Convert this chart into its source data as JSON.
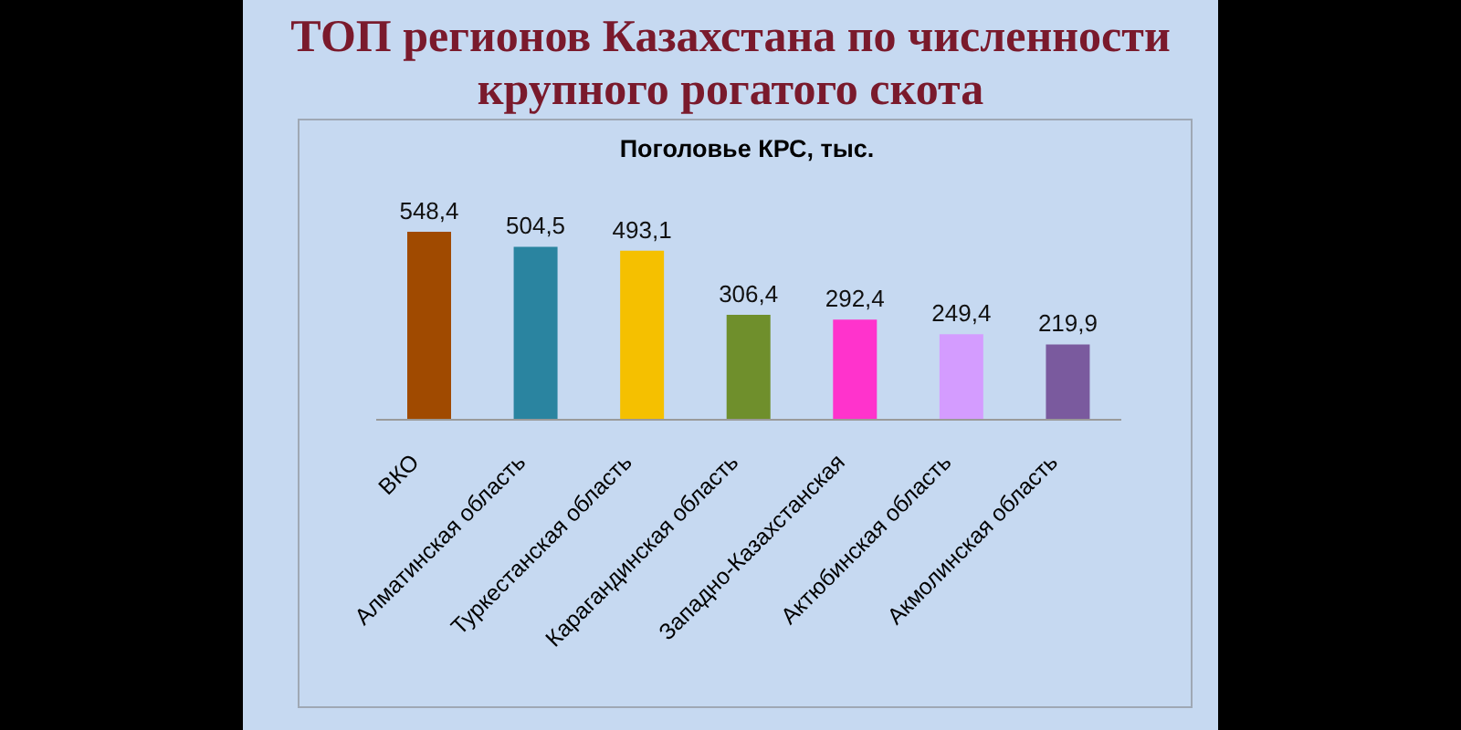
{
  "chart_data": {
    "type": "bar",
    "title": "ТОП регионов Казахстана по численности крупного рогатого скота",
    "subtitle": "Поголовье КРС, тыс.",
    "categories": [
      "ВКО",
      "Алматинская область",
      "Туркестанская область",
      "Карагандинская область",
      "Западно-Казахстанская",
      "Актюбинская область",
      "Акмолинская область"
    ],
    "values": [
      548.4,
      504.5,
      493.1,
      306.4,
      292.4,
      249.4,
      219.9
    ],
    "value_labels": [
      "548,4",
      "504,5",
      "493,1",
      "306,4",
      "292,4",
      "249,4",
      "219,9"
    ],
    "colors": [
      "#a04a00",
      "#2a84a0",
      "#f5c000",
      "#6f8f2c",
      "#ff33cc",
      "#d49cff",
      "#7a5a9e"
    ],
    "tick_labels": "x"
  }
}
